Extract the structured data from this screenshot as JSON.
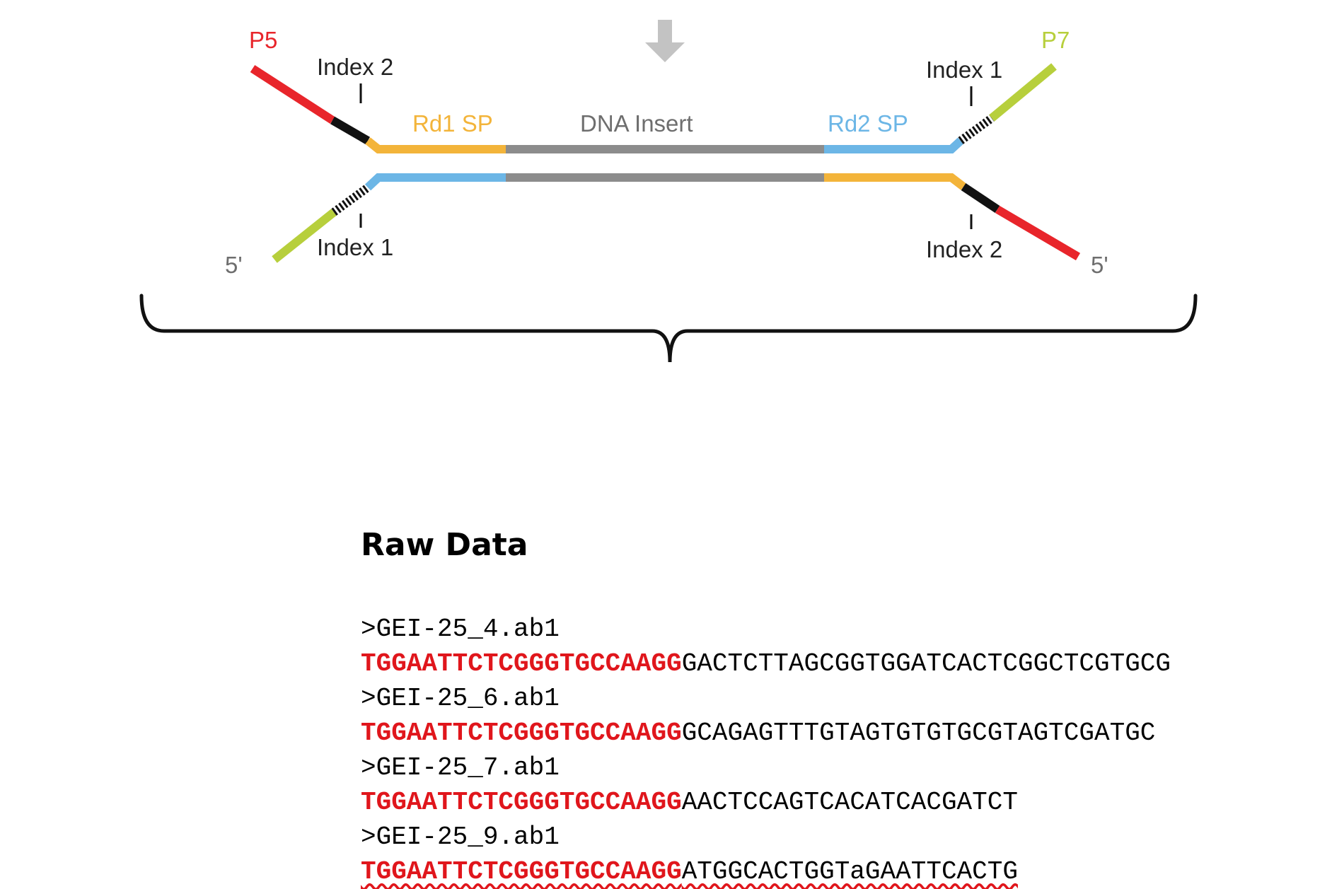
{
  "diagram": {
    "labels": {
      "p5": "P5",
      "p7": "P7",
      "index2_top": "Index 2",
      "index1_top": "Index 1",
      "rd1sp": "Rd1 SP",
      "dna_insert": "DNA Insert",
      "rd2sp": "Rd2 SP",
      "index1_bottom": "Index 1",
      "index2_bottom": "Index 2",
      "five_prime_left": "5'",
      "five_prime_right": "5'"
    },
    "colors": {
      "p5": "#e8252b",
      "p7": "#b7cf3c",
      "rd1sp": "#f3b43a",
      "rd2sp": "#6cb6e6",
      "insert": "#8c8c8c",
      "index": "#111111",
      "label_gray": "#6e6e6e",
      "arrow": "#c3c3c3"
    },
    "icons": {
      "arrow": "down-arrow-icon",
      "brace": "curly-brace"
    }
  },
  "raw_data": {
    "title": "Raw Data",
    "reads": [
      {
        "header": ">GEI-25_4.ab1",
        "adapter": "TGGAATTCTCGGGTGCCAAGG",
        "insert": "GACTCTTAGCGGTGGATCACTCGGCTCGTGCG"
      },
      {
        "header": ">GEI-25_6.ab1",
        "adapter": "TGGAATTCTCGGGTGCCAAGG",
        "insert": "GCAGAGTTTGTAGTGTGTGCGTAGTCGATGC"
      },
      {
        "header": ">GEI-25_7.ab1",
        "adapter": "TGGAATTCTCGGGTGCCAAGG",
        "insert": "AACTCCAGTCACATCACGATCT"
      },
      {
        "header": ">GEI-25_9.ab1",
        "adapter": "TGGAATTCTCGGGTGCCAAGG",
        "insert": "ATGGCACTGGTaGAATTCACTG"
      }
    ]
  }
}
